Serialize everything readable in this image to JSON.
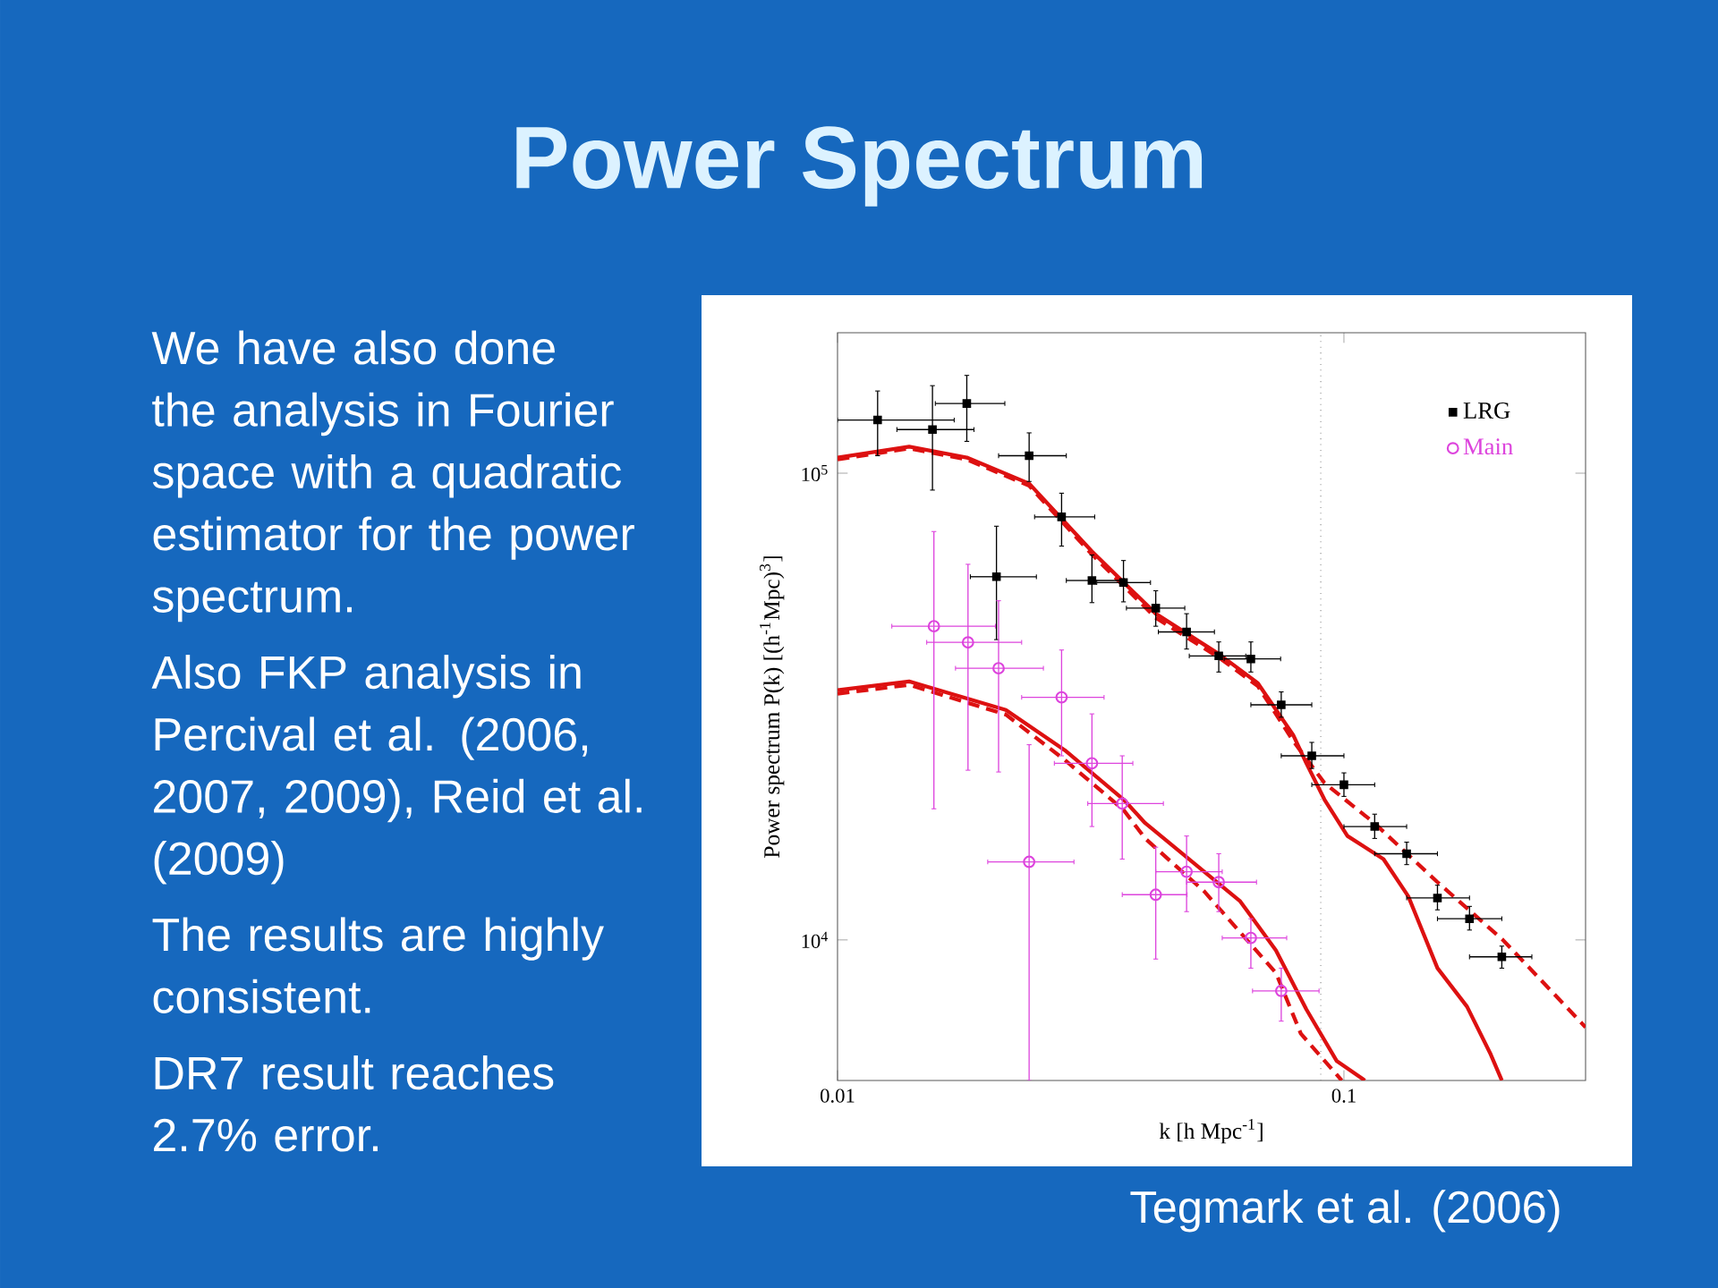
{
  "chart_data": {
    "type": "scatter",
    "title": "Power Spectrum",
    "xlabel": "k [h Mpc$^{-1}$]",
    "ylabel": "Power spectrum P(k) [(h$^{-1}$Mpc)$^{3}$]",
    "annotations": [
      "We have also done the analysis in Fourier space with a quadratic estimator for the power spectrum.",
      "Also FKP analysis in Percival et al. (2006, 2007, 2009), Reid et al. (2009)",
      "The results are highly consistent.",
      "DR7 result reaches 2.7% error.",
      "Tegmark et al. (2006)"
    ],
    "log": "xy",
    "xlim": [
      0.01,
      0.3
    ],
    "ylim": [
      5000,
      200000
    ],
    "xticks": [
      0.01,
      0.1
    ],
    "yticks": [
      {
        "value": 10000,
        "label": "10$^{4}$"
      },
      {
        "value": 100000,
        "label": "10$^{5}$"
      }
    ],
    "legend": "top right",
    "grid": false,
    "ref_lines": [
      {
        "axis": "x",
        "value": 0.09,
        "color": "#888888",
        "line_style": "dotted"
      }
    ],
    "series": [
      {
        "type": "line",
        "color": "#dd1111",
        "line_style": "dashed",
        "marker": "none",
        "x": [
          0.01,
          0.01385,
          0.018,
          0.0239,
          0.0318,
          0.0425,
          0.0566,
          0.0676,
          0.0794,
          0.0915,
          0.1148,
          0.153,
          0.206,
          0.3
        ],
        "values": [
          107000,
          113000,
          107000,
          94000,
          67000,
          49000,
          40300,
          35000,
          26700,
          21700,
          17800,
          13300,
          10000,
          6500
        ]
      },
      {
        "type": "line",
        "color": "#dd1111",
        "line_style": "solid",
        "marker": "none",
        "x": [
          0.01,
          0.01385,
          0.018,
          0.0239,
          0.0318,
          0.0425,
          0.0566,
          0.0676,
          0.0794,
          0.0843,
          0.0915,
          0.1016,
          0.1197,
          0.134,
          0.153,
          0.175,
          0.195,
          0.205
        ],
        "values": [
          108000,
          114000,
          108000,
          95000,
          68000,
          50000,
          41000,
          35500,
          27500,
          23900,
          20000,
          16700,
          14900,
          12400,
          8700,
          7200,
          5680,
          5000
        ]
      },
      {
        "type": "line",
        "color": "#dd1111",
        "line_style": "solid",
        "marker": "none",
        "x": [
          0.01,
          0.01385,
          0.0215,
          0.0281,
          0.0367,
          0.0405,
          0.053,
          0.0624,
          0.0734,
          0.0843,
          0.0968,
          0.11
        ],
        "values": [
          34300,
          35800,
          31100,
          25500,
          20000,
          17800,
          14000,
          12100,
          9500,
          7100,
          5500,
          5000
        ]
      },
      {
        "type": "line",
        "color": "#dd1111",
        "line_style": "dashed",
        "marker": "none",
        "x": [
          0.01,
          0.01385,
          0.0215,
          0.0281,
          0.0367,
          0.0405,
          0.053,
          0.0734,
          0.0822,
          0.099
        ],
        "values": [
          33700,
          35200,
          30400,
          24300,
          19000,
          16500,
          12700,
          8500,
          6300,
          5000
        ]
      },
      {
        "name": "LRG",
        "color": "#000000",
        "marker": "square",
        "x": [
          0.012,
          0.0154,
          0.018,
          0.0206,
          0.0239,
          0.0277,
          0.0318,
          0.0367,
          0.0425,
          0.0489,
          0.0566,
          0.0655,
          0.0752,
          0.0864,
          0.1,
          0.115,
          0.133,
          0.153,
          0.177,
          0.205
        ],
        "values": [
          130000,
          124000,
          141000,
          60000,
          109000,
          80600,
          58900,
          58300,
          51400,
          45700,
          40600,
          40000,
          31900,
          24800,
          21500,
          17500,
          15300,
          12300,
          11100,
          9200
        ],
        "errors": [
          [
            109000,
            150000
          ],
          [
            92000,
            154000
          ],
          [
            117000,
            162000
          ],
          [
            44000,
            77000
          ],
          [
            96000,
            122000
          ],
          [
            69800,
            90600
          ],
          [
            52800,
            66800
          ],
          [
            53000,
            65000
          ],
          [
            47000,
            56000
          ],
          [
            42000,
            50000
          ],
          [
            37500,
            43500
          ],
          [
            37500,
            43500
          ],
          [
            30000,
            34000
          ],
          [
            23300,
            26500
          ],
          [
            20300,
            22800
          ],
          [
            16500,
            18600
          ],
          [
            14500,
            16200
          ],
          [
            11600,
            13100
          ],
          [
            10500,
            11800
          ],
          [
            8700,
            9700
          ]
        ],
        "xerrors": [
          [
            0.01,
            0.017
          ],
          [
            0.0131,
            0.0186
          ],
          [
            0.0156,
            0.0214
          ],
          [
            0.0183,
            0.0247
          ],
          [
            0.0208,
            0.0283
          ],
          [
            0.0245,
            0.0322
          ],
          [
            0.0283,
            0.0368
          ],
          [
            0.0325,
            0.0415
          ],
          [
            0.0372,
            0.0485
          ],
          [
            0.043,
            0.0555
          ],
          [
            0.0495,
            0.064
          ],
          [
            0.058,
            0.075
          ],
          [
            0.0655,
            0.0864
          ],
          [
            0.0752,
            0.1
          ],
          [
            0.0864,
            0.115
          ],
          [
            0.1,
            0.133
          ],
          [
            0.115,
            0.153
          ],
          [
            0.133,
            0.177
          ],
          [
            0.153,
            0.205
          ],
          [
            0.177,
            0.235
          ]
        ]
      },
      {
        "name": "Main",
        "color": "#dd44dd",
        "marker": "circle",
        "x": [
          0.0155,
          0.0181,
          0.0208,
          0.0239,
          0.0277,
          0.0318,
          0.0365,
          0.0425,
          0.0489,
          0.0566,
          0.0655,
          0.0752
        ],
        "values": [
          47000,
          43400,
          38200,
          14700,
          33100,
          23900,
          19600,
          12500,
          14000,
          13300,
          10100,
          7780
        ],
        "errors": [
          [
            19100,
            75000
          ],
          [
            23100,
            63800
          ],
          [
            22900,
            53300
          ],
          [
            5000,
            26200
          ],
          [
            24800,
            41800
          ],
          [
            17500,
            30500
          ],
          [
            14900,
            24800
          ],
          [
            9100,
            15800
          ],
          [
            11500,
            16700
          ],
          [
            11500,
            15300
          ],
          [
            8700,
            11100
          ],
          [
            6700,
            8700
          ]
        ],
        "xerrors": [
          [
            0.0128,
            0.0205
          ],
          [
            0.015,
            0.0231
          ],
          [
            0.0171,
            0.0255
          ],
          [
            0.0198,
            0.0293
          ],
          [
            0.0231,
            0.0336
          ],
          [
            0.0268,
            0.0383
          ],
          [
            0.0312,
            0.044
          ],
          [
            0.0365,
            0.049
          ],
          [
            0.0425,
            0.0575
          ],
          [
            0.0489,
            0.0672
          ],
          [
            0.0575,
            0.0771
          ],
          [
            0.066,
            0.0893
          ]
        ]
      }
    ]
  }
}
